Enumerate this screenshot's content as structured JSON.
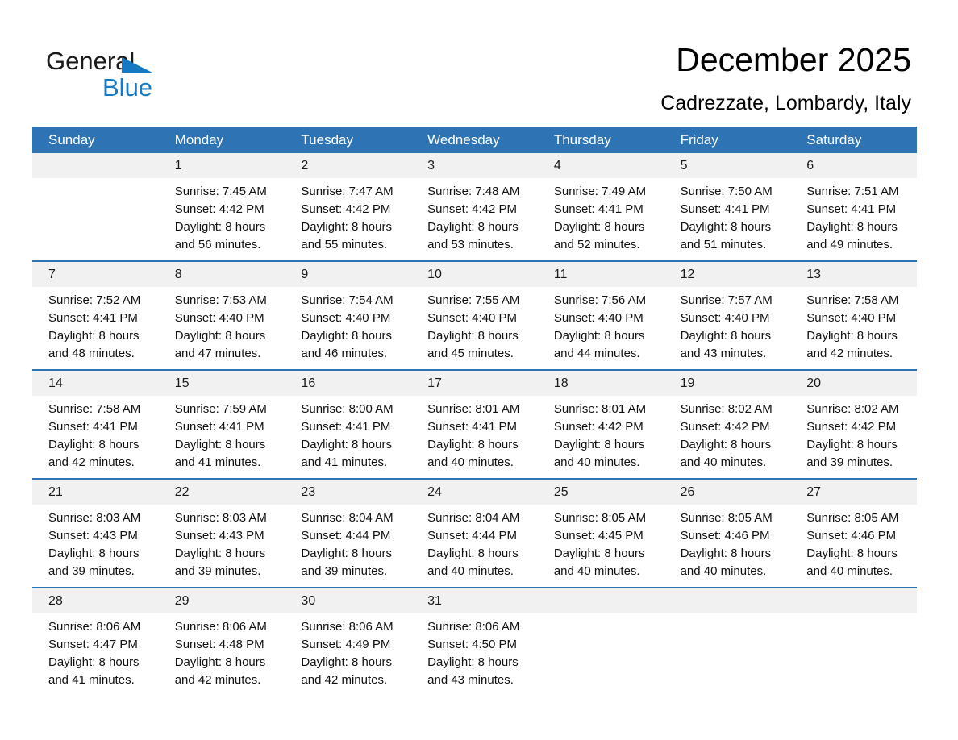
{
  "logo": {
    "text_general": "General",
    "text_blue": "Blue"
  },
  "header": {
    "title": "December 2025",
    "subtitle": "Cadrezzate, Lombardy, Italy"
  },
  "colors": {
    "header_bg": "#2e74b5",
    "week_separator": "#2e74b5",
    "day_band_bg": "#f1f1f1",
    "logo_blue": "#1779c2",
    "weekday_text": "#ffffff"
  },
  "calendar": {
    "weekdays": [
      "Sunday",
      "Monday",
      "Tuesday",
      "Wednesday",
      "Thursday",
      "Friday",
      "Saturday"
    ],
    "weeks": [
      [
        null,
        {
          "day": "1",
          "lines": [
            "Sunrise: 7:45 AM",
            "Sunset: 4:42 PM",
            "Daylight: 8 hours",
            "and 56 minutes."
          ]
        },
        {
          "day": "2",
          "lines": [
            "Sunrise: 7:47 AM",
            "Sunset: 4:42 PM",
            "Daylight: 8 hours",
            "and 55 minutes."
          ]
        },
        {
          "day": "3",
          "lines": [
            "Sunrise: 7:48 AM",
            "Sunset: 4:42 PM",
            "Daylight: 8 hours",
            "and 53 minutes."
          ]
        },
        {
          "day": "4",
          "lines": [
            "Sunrise: 7:49 AM",
            "Sunset: 4:41 PM",
            "Daylight: 8 hours",
            "and 52 minutes."
          ]
        },
        {
          "day": "5",
          "lines": [
            "Sunrise: 7:50 AM",
            "Sunset: 4:41 PM",
            "Daylight: 8 hours",
            "and 51 minutes."
          ]
        },
        {
          "day": "6",
          "lines": [
            "Sunrise: 7:51 AM",
            "Sunset: 4:41 PM",
            "Daylight: 8 hours",
            "and 49 minutes."
          ]
        }
      ],
      [
        {
          "day": "7",
          "lines": [
            "Sunrise: 7:52 AM",
            "Sunset: 4:41 PM",
            "Daylight: 8 hours",
            "and 48 minutes."
          ]
        },
        {
          "day": "8",
          "lines": [
            "Sunrise: 7:53 AM",
            "Sunset: 4:40 PM",
            "Daylight: 8 hours",
            "and 47 minutes."
          ]
        },
        {
          "day": "9",
          "lines": [
            "Sunrise: 7:54 AM",
            "Sunset: 4:40 PM",
            "Daylight: 8 hours",
            "and 46 minutes."
          ]
        },
        {
          "day": "10",
          "lines": [
            "Sunrise: 7:55 AM",
            "Sunset: 4:40 PM",
            "Daylight: 8 hours",
            "and 45 minutes."
          ]
        },
        {
          "day": "11",
          "lines": [
            "Sunrise: 7:56 AM",
            "Sunset: 4:40 PM",
            "Daylight: 8 hours",
            "and 44 minutes."
          ]
        },
        {
          "day": "12",
          "lines": [
            "Sunrise: 7:57 AM",
            "Sunset: 4:40 PM",
            "Daylight: 8 hours",
            "and 43 minutes."
          ]
        },
        {
          "day": "13",
          "lines": [
            "Sunrise: 7:58 AM",
            "Sunset: 4:40 PM",
            "Daylight: 8 hours",
            "and 42 minutes."
          ]
        }
      ],
      [
        {
          "day": "14",
          "lines": [
            "Sunrise: 7:58 AM",
            "Sunset: 4:41 PM",
            "Daylight: 8 hours",
            "and 42 minutes."
          ]
        },
        {
          "day": "15",
          "lines": [
            "Sunrise: 7:59 AM",
            "Sunset: 4:41 PM",
            "Daylight: 8 hours",
            "and 41 minutes."
          ]
        },
        {
          "day": "16",
          "lines": [
            "Sunrise: 8:00 AM",
            "Sunset: 4:41 PM",
            "Daylight: 8 hours",
            "and 41 minutes."
          ]
        },
        {
          "day": "17",
          "lines": [
            "Sunrise: 8:01 AM",
            "Sunset: 4:41 PM",
            "Daylight: 8 hours",
            "and 40 minutes."
          ]
        },
        {
          "day": "18",
          "lines": [
            "Sunrise: 8:01 AM",
            "Sunset: 4:42 PM",
            "Daylight: 8 hours",
            "and 40 minutes."
          ]
        },
        {
          "day": "19",
          "lines": [
            "Sunrise: 8:02 AM",
            "Sunset: 4:42 PM",
            "Daylight: 8 hours",
            "and 40 minutes."
          ]
        },
        {
          "day": "20",
          "lines": [
            "Sunrise: 8:02 AM",
            "Sunset: 4:42 PM",
            "Daylight: 8 hours",
            "and 39 minutes."
          ]
        }
      ],
      [
        {
          "day": "21",
          "lines": [
            "Sunrise: 8:03 AM",
            "Sunset: 4:43 PM",
            "Daylight: 8 hours",
            "and 39 minutes."
          ]
        },
        {
          "day": "22",
          "lines": [
            "Sunrise: 8:03 AM",
            "Sunset: 4:43 PM",
            "Daylight: 8 hours",
            "and 39 minutes."
          ]
        },
        {
          "day": "23",
          "lines": [
            "Sunrise: 8:04 AM",
            "Sunset: 4:44 PM",
            "Daylight: 8 hours",
            "and 39 minutes."
          ]
        },
        {
          "day": "24",
          "lines": [
            "Sunrise: 8:04 AM",
            "Sunset: 4:44 PM",
            "Daylight: 8 hours",
            "and 40 minutes."
          ]
        },
        {
          "day": "25",
          "lines": [
            "Sunrise: 8:05 AM",
            "Sunset: 4:45 PM",
            "Daylight: 8 hours",
            "and 40 minutes."
          ]
        },
        {
          "day": "26",
          "lines": [
            "Sunrise: 8:05 AM",
            "Sunset: 4:46 PM",
            "Daylight: 8 hours",
            "and 40 minutes."
          ]
        },
        {
          "day": "27",
          "lines": [
            "Sunrise: 8:05 AM",
            "Sunset: 4:46 PM",
            "Daylight: 8 hours",
            "and 40 minutes."
          ]
        }
      ],
      [
        {
          "day": "28",
          "lines": [
            "Sunrise: 8:06 AM",
            "Sunset: 4:47 PM",
            "Daylight: 8 hours",
            "and 41 minutes."
          ]
        },
        {
          "day": "29",
          "lines": [
            "Sunrise: 8:06 AM",
            "Sunset: 4:48 PM",
            "Daylight: 8 hours",
            "and 42 minutes."
          ]
        },
        {
          "day": "30",
          "lines": [
            "Sunrise: 8:06 AM",
            "Sunset: 4:49 PM",
            "Daylight: 8 hours",
            "and 42 minutes."
          ]
        },
        {
          "day": "31",
          "lines": [
            "Sunrise: 8:06 AM",
            "Sunset: 4:50 PM",
            "Daylight: 8 hours",
            "and 43 minutes."
          ]
        },
        null,
        null,
        null
      ]
    ]
  }
}
